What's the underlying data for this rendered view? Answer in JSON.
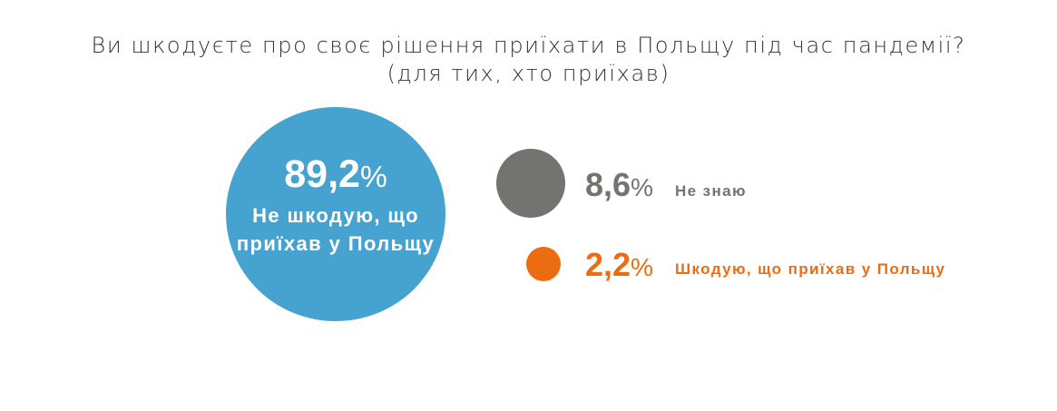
{
  "chart_data": {
    "type": "bubble",
    "title": "Ви шкодуєте про своє рішення приїхати в Польщу під час пандемії?",
    "subtitle": "(для тих, хто приїхав)",
    "unit": "%",
    "items": [
      {
        "label": "Не шкодую, що приїхав у Польщу",
        "value": 89.2,
        "display": "89,2",
        "color": "#46a3d0"
      },
      {
        "label": "Не знаю",
        "value": 8.6,
        "display": "8,6",
        "color": "#737370"
      },
      {
        "label": "Шкодую, що приїхав у Польщу",
        "value": 2.2,
        "display": "2,2",
        "color": "#ec6c12"
      }
    ]
  }
}
